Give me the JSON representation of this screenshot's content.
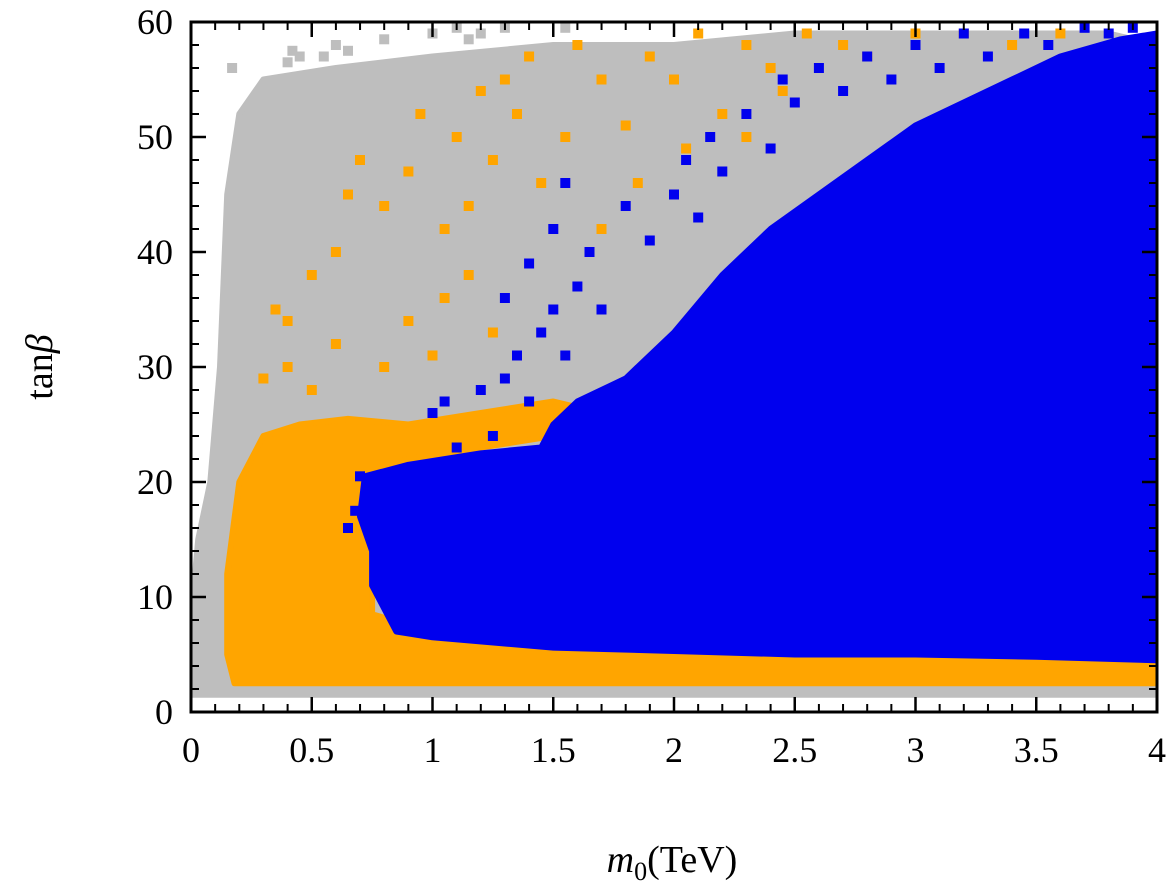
{
  "chart_data": {
    "type": "scatter",
    "title": "",
    "xlabel": {
      "symbol": "m",
      "subscript": "0",
      "unit": "(TeV)"
    },
    "ylabel": {
      "prefix": "tan",
      "symbol": "β"
    },
    "xlim": [
      0,
      4
    ],
    "ylim": [
      0,
      60
    ],
    "xticks": [
      0,
      0.5,
      1,
      1.5,
      2,
      2.5,
      3,
      3.5,
      4
    ],
    "xtick_labels": [
      "0",
      "0.5",
      "1",
      "1.5",
      "2",
      "2.5",
      "3",
      "3.5",
      "4"
    ],
    "yticks": [
      0,
      10,
      20,
      30,
      40,
      50,
      60
    ],
    "ytick_labels": [
      "0",
      "10",
      "20",
      "30",
      "40",
      "50",
      "60"
    ],
    "grid": false,
    "series": [
      {
        "name": "gray points",
        "color": "#bebebe",
        "dense_region": [
          [
            0.0,
            1.5
          ],
          [
            4.0,
            1.5
          ],
          [
            4.0,
            58
          ],
          [
            3.8,
            59
          ],
          [
            3.4,
            59
          ],
          [
            3.0,
            59
          ],
          [
            2.5,
            59
          ],
          [
            2.0,
            58
          ],
          [
            1.5,
            58
          ],
          [
            1.0,
            57
          ],
          [
            0.6,
            56
          ],
          [
            0.3,
            55
          ],
          [
            0.2,
            52
          ],
          [
            0.15,
            45
          ],
          [
            0.12,
            30
          ],
          [
            0.08,
            20
          ],
          [
            0.03,
            15
          ],
          [
            0.0,
            8
          ]
        ],
        "scattered_points": [
          [
            0.17,
            56
          ],
          [
            0.4,
            56.5
          ],
          [
            0.42,
            57.5
          ],
          [
            0.45,
            57
          ],
          [
            0.55,
            57
          ],
          [
            0.6,
            58
          ],
          [
            0.65,
            57.5
          ],
          [
            0.8,
            58.5
          ],
          [
            1.0,
            59
          ],
          [
            1.1,
            59.5
          ],
          [
            1.15,
            58.5
          ],
          [
            1.2,
            59
          ],
          [
            1.3,
            59.5
          ],
          [
            1.55,
            59.5
          ]
        ]
      },
      {
        "name": "orange points",
        "color": "#ffa500",
        "dense_region": [
          [
            0.18,
            2.5
          ],
          [
            4.0,
            2.5
          ],
          [
            4.0,
            5.5
          ],
          [
            3.5,
            5.5
          ],
          [
            3.0,
            6
          ],
          [
            2.5,
            6
          ],
          [
            2.0,
            6.2
          ],
          [
            1.5,
            6.5
          ],
          [
            1.0,
            7
          ],
          [
            0.75,
            8.5
          ],
          [
            0.75,
            15
          ],
          [
            0.73,
            21
          ],
          [
            0.9,
            22
          ],
          [
            1.2,
            23
          ],
          [
            1.5,
            24
          ],
          [
            1.7,
            26
          ],
          [
            1.5,
            27
          ],
          [
            1.2,
            26
          ],
          [
            0.9,
            25
          ],
          [
            0.65,
            25.5
          ],
          [
            0.45,
            25
          ],
          [
            0.3,
            24
          ],
          [
            0.2,
            20
          ],
          [
            0.15,
            12
          ],
          [
            0.15,
            5
          ]
        ],
        "scattered_points": [
          [
            0.35,
            35
          ],
          [
            0.4,
            34
          ],
          [
            0.5,
            38
          ],
          [
            0.6,
            40
          ],
          [
            0.65,
            45
          ],
          [
            0.7,
            48
          ],
          [
            0.8,
            44
          ],
          [
            0.9,
            47
          ],
          [
            0.95,
            52
          ],
          [
            1.05,
            42
          ],
          [
            1.1,
            50
          ],
          [
            1.15,
            44
          ],
          [
            1.2,
            54
          ],
          [
            1.25,
            48
          ],
          [
            1.3,
            55
          ],
          [
            1.35,
            52
          ],
          [
            1.4,
            57
          ],
          [
            1.45,
            46
          ],
          [
            1.55,
            50
          ],
          [
            1.6,
            58
          ],
          [
            1.7,
            55
          ],
          [
            1.8,
            51
          ],
          [
            1.9,
            57
          ],
          [
            2.0,
            55
          ],
          [
            2.1,
            59
          ],
          [
            2.2,
            52
          ],
          [
            2.3,
            58
          ],
          [
            2.4,
            56
          ],
          [
            2.55,
            59
          ],
          [
            2.7,
            58
          ],
          [
            2.8,
            57
          ],
          [
            3.0,
            59
          ],
          [
            3.2,
            59
          ],
          [
            3.4,
            58
          ],
          [
            3.6,
            59
          ],
          [
            0.4,
            30
          ],
          [
            0.5,
            28
          ],
          [
            0.6,
            32
          ],
          [
            0.8,
            30
          ],
          [
            0.9,
            34
          ],
          [
            1.0,
            31
          ],
          [
            1.05,
            36
          ],
          [
            1.15,
            38
          ],
          [
            1.25,
            33
          ],
          [
            0.3,
            29
          ],
          [
            1.7,
            42
          ],
          [
            1.85,
            46
          ],
          [
            2.05,
            49
          ],
          [
            2.3,
            50
          ],
          [
            2.45,
            54
          ]
        ]
      },
      {
        "name": "blue points",
        "color": "#0000ee",
        "dense_region": [
          [
            0.75,
            11
          ],
          [
            0.75,
            14
          ],
          [
            0.7,
            17
          ],
          [
            0.72,
            20.5
          ],
          [
            0.9,
            21.5
          ],
          [
            1.2,
            22.5
          ],
          [
            1.45,
            23
          ],
          [
            1.5,
            25
          ],
          [
            1.6,
            27
          ],
          [
            1.8,
            29
          ],
          [
            2.0,
            33
          ],
          [
            2.2,
            38
          ],
          [
            2.4,
            42
          ],
          [
            2.6,
            45
          ],
          [
            2.8,
            48
          ],
          [
            3.0,
            51
          ],
          [
            3.2,
            53
          ],
          [
            3.4,
            55
          ],
          [
            3.6,
            57
          ],
          [
            3.85,
            58.5
          ],
          [
            4.0,
            59
          ],
          [
            4.0,
            4.5
          ],
          [
            3.5,
            4.8
          ],
          [
            3.0,
            5
          ],
          [
            2.5,
            5
          ],
          [
            2.0,
            5.3
          ],
          [
            1.5,
            5.6
          ],
          [
            1.0,
            6.5
          ],
          [
            0.85,
            7
          ]
        ],
        "scattered_points": [
          [
            0.65,
            16
          ],
          [
            0.68,
            17.5
          ],
          [
            0.7,
            20.5
          ],
          [
            1.0,
            26
          ],
          [
            1.05,
            27
          ],
          [
            1.1,
            23
          ],
          [
            1.2,
            28
          ],
          [
            1.25,
            24
          ],
          [
            1.3,
            29
          ],
          [
            1.35,
            31
          ],
          [
            1.4,
            27
          ],
          [
            1.45,
            33
          ],
          [
            1.5,
            35
          ],
          [
            1.55,
            31
          ],
          [
            1.6,
            37
          ],
          [
            1.65,
            40
          ],
          [
            1.7,
            35
          ],
          [
            1.8,
            44
          ],
          [
            1.9,
            41
          ],
          [
            2.0,
            45
          ],
          [
            2.05,
            48
          ],
          [
            2.1,
            43
          ],
          [
            2.15,
            50
          ],
          [
            2.2,
            47
          ],
          [
            2.3,
            52
          ],
          [
            2.4,
            49
          ],
          [
            2.45,
            55
          ],
          [
            2.5,
            53
          ],
          [
            2.6,
            56
          ],
          [
            2.7,
            54
          ],
          [
            2.8,
            57
          ],
          [
            2.9,
            55
          ],
          [
            3.0,
            58
          ],
          [
            3.1,
            56
          ],
          [
            3.2,
            59
          ],
          [
            3.3,
            57
          ],
          [
            3.45,
            59
          ],
          [
            3.55,
            58
          ],
          [
            3.7,
            59.5
          ],
          [
            3.8,
            59
          ],
          [
            3.9,
            59.5
          ],
          [
            1.4,
            39
          ],
          [
            1.5,
            42
          ],
          [
            1.3,
            36
          ],
          [
            1.55,
            46
          ]
        ]
      }
    ]
  }
}
